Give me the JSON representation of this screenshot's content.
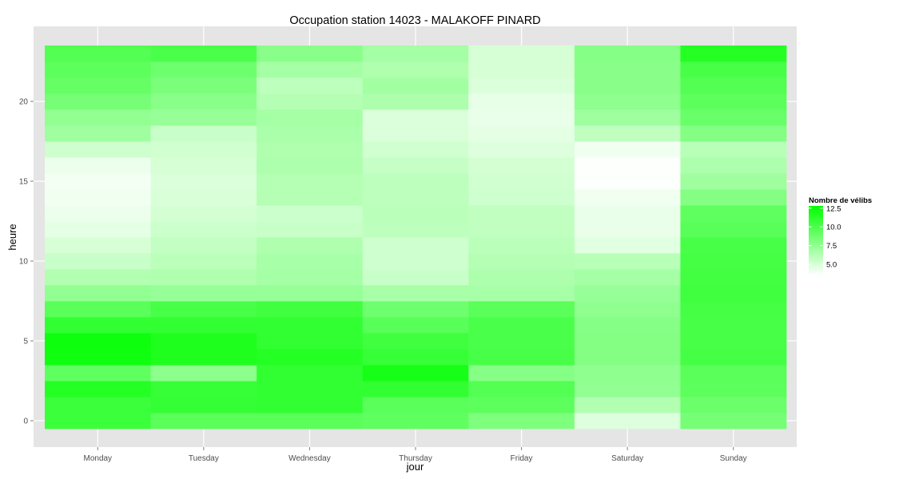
{
  "chart_data": {
    "type": "heatmap",
    "title": "Occupation station 14023 - MALAKOFF PINARD",
    "xlabel": "jour",
    "ylabel": "heure",
    "categories": [
      "Monday",
      "Tuesday",
      "Wednesday",
      "Thursday",
      "Friday",
      "Saturday",
      "Sunday"
    ],
    "hours": [
      0,
      1,
      2,
      3,
      4,
      5,
      6,
      7,
      8,
      9,
      10,
      11,
      12,
      13,
      14,
      15,
      16,
      17,
      18,
      19,
      20,
      21,
      22,
      23
    ],
    "y_ticks": [
      0,
      5,
      10,
      15,
      20
    ],
    "ylim": [
      -0.5,
      23.5
    ],
    "legend": {
      "title": "Nombre de vélibs",
      "ticks": [
        "5.0",
        "7.5",
        "10.0",
        "12.5"
      ],
      "range": [
        3.5,
        12.8
      ],
      "low_color": "#ffffff",
      "high_color": "#00ff00"
    },
    "values": [
      [
        10.6,
        10.6,
        11.5,
        9.3,
        12.2,
        12.3,
        11.0,
        9.5,
        7.5,
        6.3,
        5.5,
        5.0,
        4.5,
        4.2,
        4.0,
        3.9,
        4.2,
        5.3,
        7.0,
        7.5,
        8.5,
        9.1,
        9.4,
        9.8
      ],
      [
        9.5,
        10.9,
        10.8,
        7.7,
        11.7,
        11.7,
        11.0,
        10.2,
        7.3,
        6.4,
        6.0,
        5.7,
        5.4,
        5.1,
        4.9,
        4.8,
        5.0,
        5.2,
        5.5,
        7.3,
        7.8,
        8.3,
        8.8,
        10.1
      ],
      [
        9.5,
        11.0,
        11.0,
        11.0,
        11.5,
        11.0,
        11.0,
        10.5,
        7.3,
        6.8,
        6.7,
        6.4,
        5.5,
        5.4,
        6.2,
        6.2,
        6.5,
        6.4,
        6.6,
        6.8,
        6.2,
        5.9,
        6.8,
        7.8
      ],
      [
        9.3,
        9.5,
        11.0,
        12.0,
        10.8,
        10.5,
        9.6,
        8.8,
        6.7,
        5.5,
        5.3,
        5.3,
        5.9,
        6.0,
        5.9,
        5.9,
        5.6,
        5.2,
        4.8,
        4.8,
        6.5,
        6.9,
        6.4,
        6.8
      ],
      [
        8.2,
        9.4,
        9.8,
        7.9,
        10.2,
        10.1,
        10.1,
        9.5,
        6.7,
        6.5,
        6.2,
        6.0,
        5.8,
        5.8,
        5.3,
        5.2,
        5.1,
        4.7,
        4.5,
        4.3,
        4.4,
        4.8,
        5.0,
        5.0
      ],
      [
        4.7,
        6.3,
        7.5,
        7.6,
        8.0,
        8.0,
        7.9,
        7.6,
        7.3,
        6.8,
        6.1,
        4.6,
        4.3,
        4.3,
        4.0,
        3.6,
        3.6,
        4.0,
        5.8,
        7.0,
        7.6,
        7.8,
        7.8,
        7.9
      ],
      [
        8.5,
        8.9,
        9.4,
        9.5,
        10.3,
        10.2,
        10.2,
        10.3,
        10.5,
        10.4,
        10.3,
        10.2,
        9.6,
        9.3,
        8.0,
        7.0,
        6.5,
        6.1,
        8.0,
        9.0,
        9.4,
        9.8,
        10.2,
        11.5
      ]
    ]
  }
}
